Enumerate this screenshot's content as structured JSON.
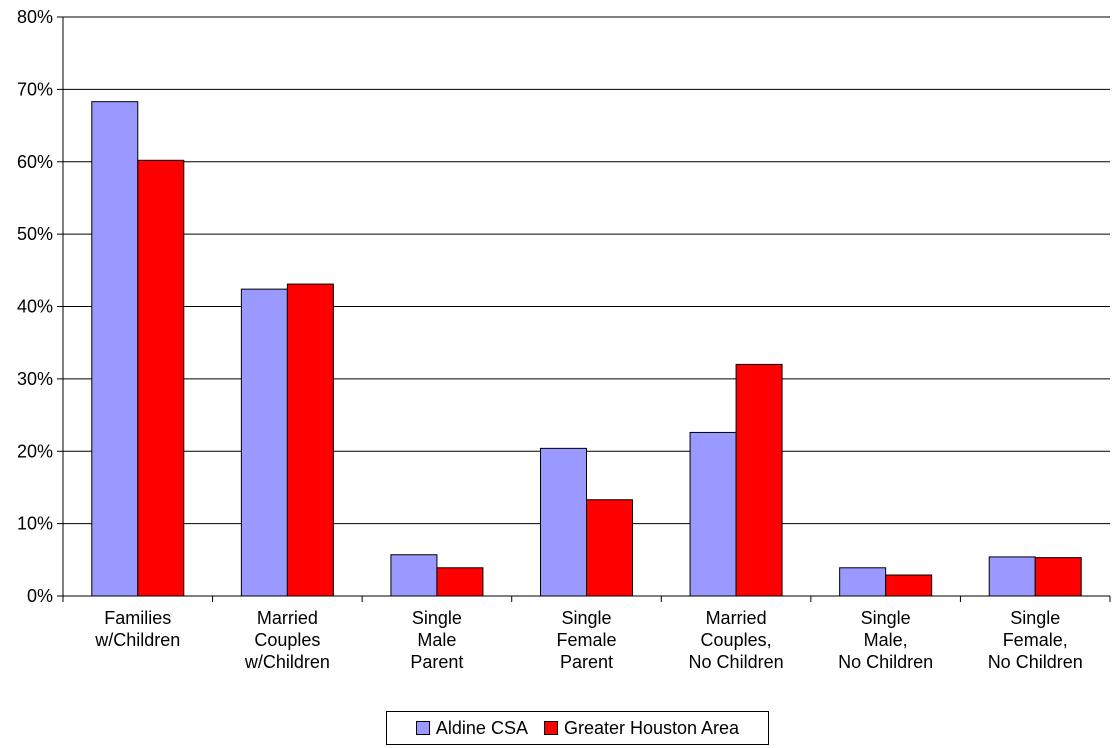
{
  "chart_data": {
    "type": "bar",
    "categories": [
      [
        "Families",
        "w/Children"
      ],
      [
        "Married",
        "Couples",
        "w/Children"
      ],
      [
        "Single",
        "Male",
        "Parent"
      ],
      [
        "Single",
        "Female",
        "Parent"
      ],
      [
        "Married",
        "Couples,",
        "No Children"
      ],
      [
        "Single",
        "Male,",
        "No Children"
      ],
      [
        "Single",
        "Female,",
        "No Children"
      ]
    ],
    "series": [
      {
        "name": "Aldine CSA",
        "color": "#9999ff",
        "values": [
          68.3,
          42.4,
          5.7,
          20.4,
          22.6,
          3.9,
          5.4
        ]
      },
      {
        "name": "Greater Houston Area",
        "color": "#ff0000",
        "values": [
          60.2,
          43.1,
          3.9,
          13.3,
          32.0,
          2.9,
          5.3
        ]
      }
    ],
    "ylim": [
      0,
      80
    ],
    "yticks": [
      "0%",
      "10%",
      "20%",
      "30%",
      "40%",
      "50%",
      "60%",
      "70%",
      "80%"
    ],
    "title": "",
    "xlabel": "",
    "ylabel": "",
    "grid": true,
    "legend_position": "bottom"
  }
}
